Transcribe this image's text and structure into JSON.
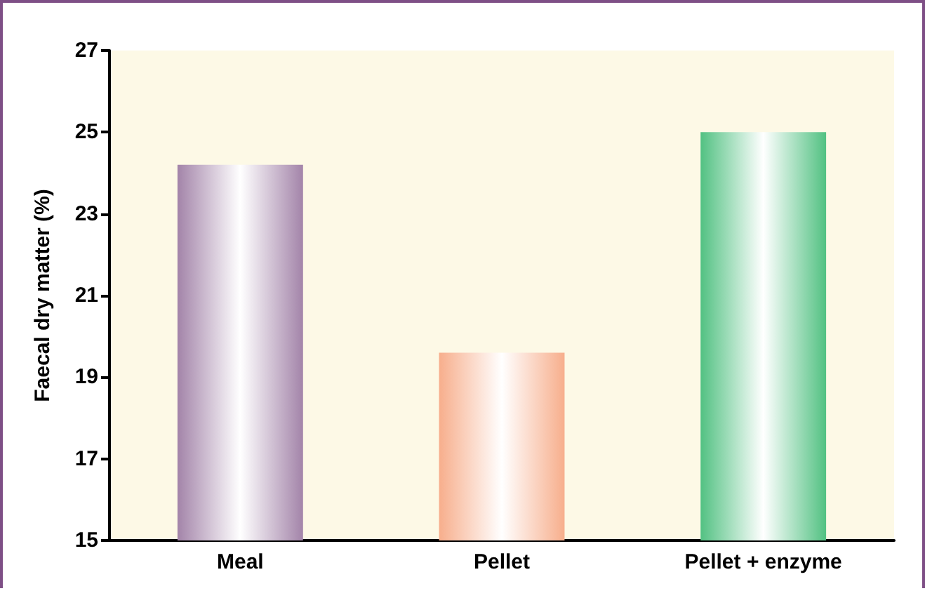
{
  "chart_data": {
    "type": "bar",
    "ylabel": "Faecal dry matter (%)",
    "categories": [
      "Meal",
      "Pellet",
      "Pellet + enzyme"
    ],
    "values": [
      24.2,
      19.6,
      25.0
    ],
    "colors": [
      "#a384a9",
      "#f7ae8c",
      "#52c182"
    ],
    "ylim": [
      15,
      27
    ],
    "yticks": [
      15,
      17,
      19,
      21,
      23,
      25,
      27
    ],
    "grid": false
  }
}
